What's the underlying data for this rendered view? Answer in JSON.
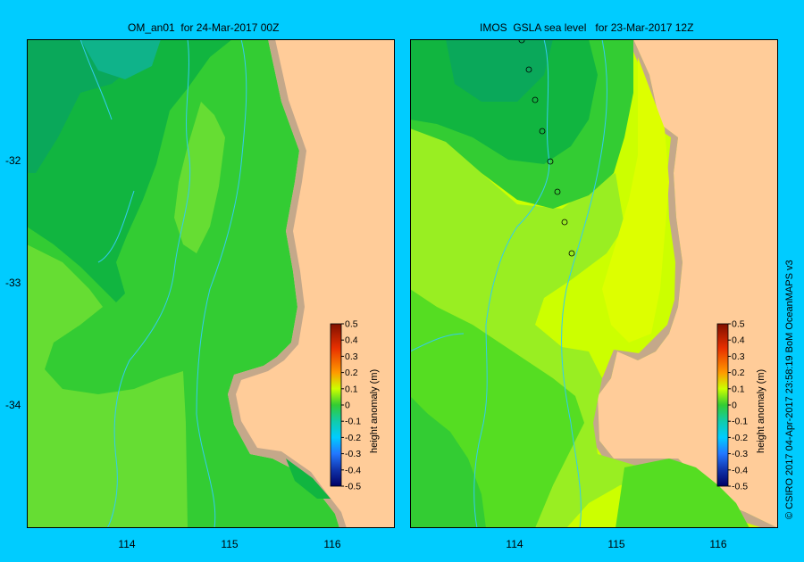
{
  "colors": {
    "background": "#00ccff",
    "land": "#ffcc99",
    "coast": "#c4a88a",
    "rivers": "#33ccee"
  },
  "panels": [
    {
      "id": "left",
      "title": "OM_an01  for 24-Mar-2017 00Z",
      "colorbar_label": "height anomaly (m)"
    },
    {
      "id": "right",
      "title": "IMOS  GSLA sea level   for 23-Mar-2017 12Z",
      "colorbar_label": "height anomaly (m)"
    }
  ],
  "axes": {
    "lat_labels": [
      "-32",
      "-33",
      "-34"
    ],
    "lon_labels": [
      "114",
      "115",
      "116"
    ]
  },
  "colorbar": {
    "ticks": [
      "0.5",
      "0.4",
      "0.3",
      "0.2",
      "0.1",
      "0",
      "-0.1",
      "-0.2",
      "-0.3",
      "-0.4",
      "-0.5"
    ],
    "range": [
      -0.5,
      0.5
    ]
  },
  "copyright": "© CSIRO 2017   04-Apr-2017 23:58:19 BoM OceanMAPS v3"
}
